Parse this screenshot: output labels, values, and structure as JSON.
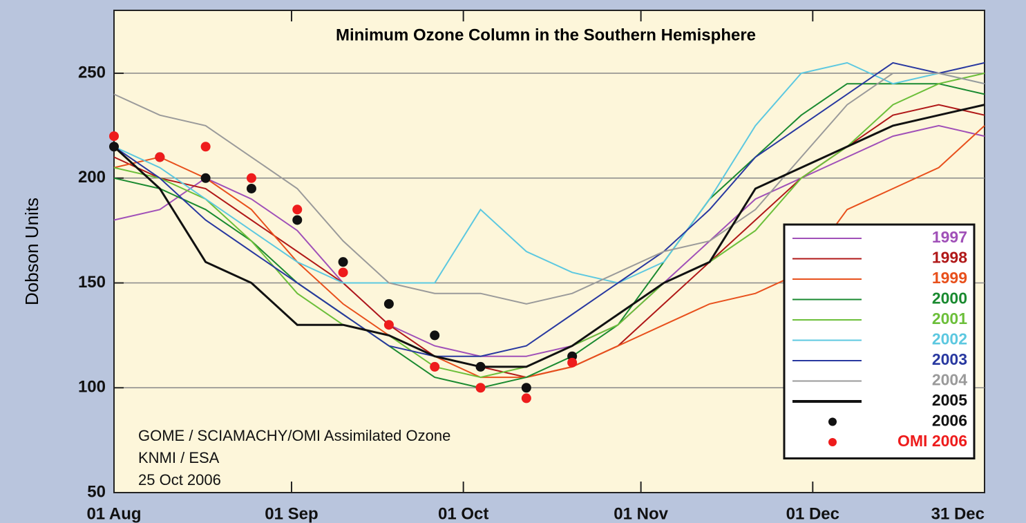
{
  "chart_data": {
    "type": "line",
    "title": "Minimum Ozone Column in the Southern Hemisphere",
    "y_label": "Dobson Units",
    "annotations": [
      "GOME / SCIAMACHY/OMI Assimilated Ozone",
      "KNMI / ESA",
      "25 Oct 2006"
    ],
    "x": [
      0,
      8,
      16,
      24,
      32,
      40,
      48,
      56,
      64,
      72,
      80,
      88,
      96,
      104,
      112,
      120,
      128,
      136,
      144,
      152
    ],
    "xlim": [
      0,
      152
    ],
    "xticks": [
      {
        "value": 0,
        "label": "01 Aug"
      },
      {
        "value": 31,
        "label": "01 Sep"
      },
      {
        "value": 61,
        "label": "01 Oct"
      },
      {
        "value": 92,
        "label": "01 Nov"
      },
      {
        "value": 122,
        "label": "01 Dec"
      },
      {
        "value": 152,
        "label": "31 Dec"
      }
    ],
    "ylim": [
      50,
      280
    ],
    "yticks": [
      50,
      100,
      150,
      200,
      250
    ],
    "grid": true,
    "legend": "lower right",
    "series": [
      {
        "name": "1997",
        "color": "#a050b8",
        "values": [
          180,
          185,
          200,
          190,
          175,
          150,
          130,
          120,
          115,
          115,
          120,
          130,
          150,
          170,
          190,
          200,
          210,
          220,
          225,
          220
        ]
      },
      {
        "name": "1998",
        "color": "#b01818",
        "values": [
          210,
          200,
          195,
          180,
          165,
          150,
          130,
          115,
          110,
          105,
          110,
          120,
          140,
          160,
          180,
          200,
          215,
          230,
          235,
          230
        ]
      },
      {
        "name": "1999",
        "color": "#e8501c",
        "values": [
          205,
          210,
          200,
          185,
          160,
          140,
          125,
          115,
          105,
          105,
          110,
          120,
          130,
          140,
          145,
          155,
          185,
          195,
          205,
          225
        ]
      },
      {
        "name": "2000",
        "color": "#1a8a30",
        "values": [
          200,
          195,
          185,
          170,
          150,
          135,
          120,
          105,
          100,
          105,
          115,
          130,
          160,
          190,
          210,
          230,
          245,
          245,
          245,
          240
        ]
      },
      {
        "name": "2001",
        "color": "#6cbf3a",
        "values": [
          205,
          200,
          190,
          170,
          145,
          130,
          125,
          110,
          105,
          110,
          120,
          130,
          150,
          160,
          175,
          200,
          215,
          235,
          245,
          250
        ]
      },
      {
        "name": "2002",
        "color": "#5cc8e0",
        "values": [
          215,
          205,
          190,
          175,
          160,
          150,
          150,
          150,
          185,
          165,
          155,
          150,
          160,
          190,
          225,
          250,
          255,
          245,
          250,
          245
        ]
      },
      {
        "name": "2003",
        "color": "#2838a0",
        "values": [
          215,
          200,
          180,
          165,
          150,
          135,
          120,
          115,
          115,
          120,
          135,
          150,
          165,
          185,
          210,
          225,
          240,
          255,
          250,
          255
        ]
      },
      {
        "name": "2004",
        "color": "#9a9a9a",
        "values": [
          240,
          230,
          225,
          210,
          195,
          170,
          150,
          145,
          145,
          140,
          145,
          155,
          165,
          170,
          185,
          210,
          235,
          250,
          250,
          245
        ]
      },
      {
        "name": "2005",
        "color": "#111111",
        "values": [
          215,
          195,
          160,
          150,
          130,
          130,
          125,
          115,
          110,
          110,
          120,
          135,
          150,
          160,
          195,
          205,
          215,
          225,
          230,
          235
        ]
      },
      {
        "name": "2006",
        "color": "#111111",
        "marker": "dot",
        "values": [
          215,
          210,
          200,
          195,
          180,
          160,
          140,
          125,
          110,
          100,
          115,
          null,
          null,
          null,
          null,
          null,
          null,
          null,
          null,
          null
        ]
      },
      {
        "name": "OMI 2006",
        "color": "#ee1c1c",
        "marker": "dot",
        "values": [
          220,
          210,
          215,
          200,
          185,
          155,
          130,
          110,
          100,
          95,
          112,
          null,
          null,
          null,
          null,
          null,
          null,
          null,
          null,
          null
        ]
      }
    ]
  }
}
